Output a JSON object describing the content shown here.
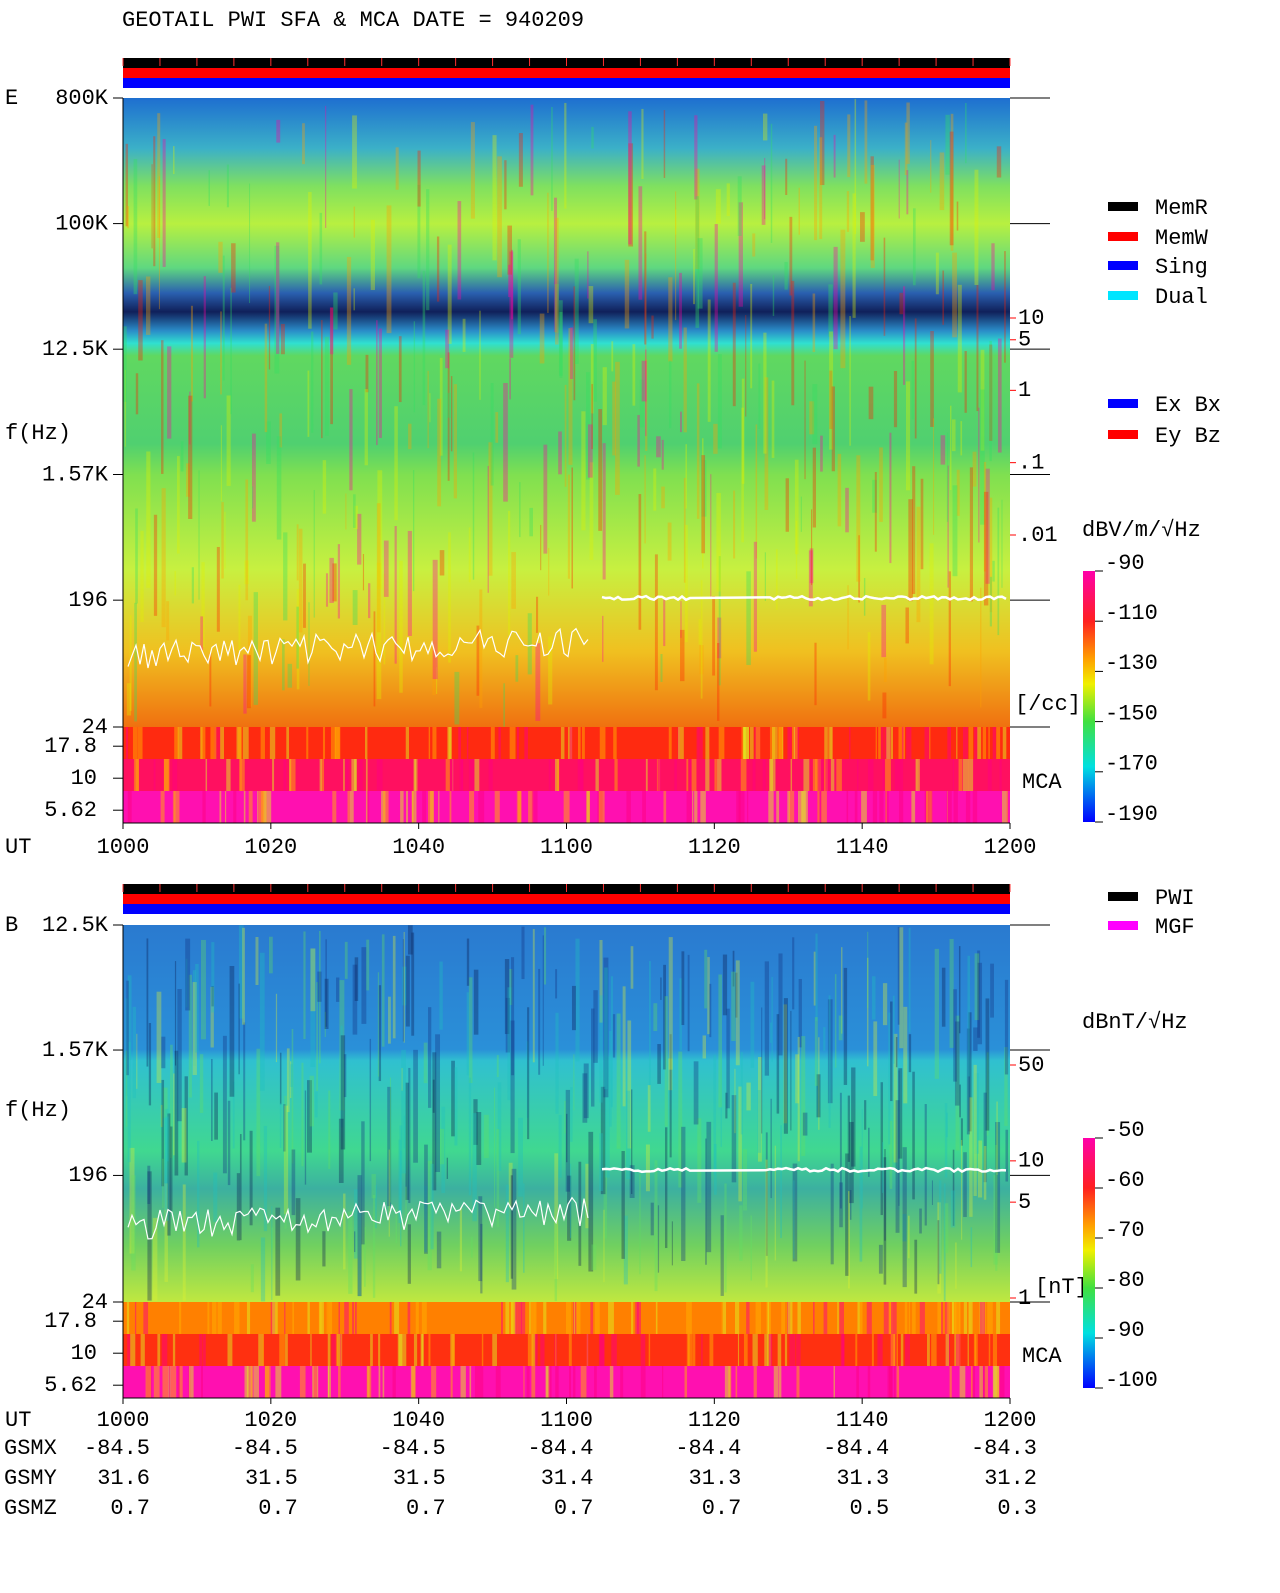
{
  "header": {
    "title": "GEOTAIL  PWI SFA & MCA   DATE = 940209"
  },
  "chart_data": [
    {
      "type": "spectrogram",
      "panel_label": "E",
      "y_label": "f(Hz)",
      "x_label": "UT",
      "x": [
        "1000",
        "1020",
        "1040",
        "1100",
        "1120",
        "1140",
        "1200"
      ],
      "log_y": true,
      "ylim": [
        24,
        800000
      ],
      "yticks": [
        {
          "value": 800000,
          "label": "800K"
        },
        {
          "value": 100000,
          "label": "100K"
        },
        {
          "value": 12500,
          "label": "12.5K"
        },
        {
          "value": 1570,
          "label": "1.57K"
        },
        196,
        24
      ],
      "mca_label": "MCA",
      "mca_ticks": [
        17.8,
        10,
        5.62
      ],
      "colorbar": {
        "label": "dBV/m/√Hz",
        "lim": [
          -190,
          -90
        ],
        "ticks": [
          -90,
          -110,
          -130,
          -150,
          -170,
          -190
        ]
      },
      "right_axis": {
        "label": "[/cc]",
        "color": "#ff0000",
        "log": true,
        "lim": [
          0.01,
          10
        ],
        "ticks": [
          10,
          5,
          1,
          {
            "value": 0.1,
            "label": ".1"
          },
          {
            "value": 0.01,
            "label": ".01"
          }
        ]
      },
      "legend": [
        {
          "name": "MemR",
          "color": "#000000"
        },
        {
          "name": "MemW",
          "color": "#ff0000"
        },
        {
          "name": "Sing",
          "color": "#0000ff"
        },
        {
          "name": "Dual",
          "color": "#00e5ff"
        }
      ],
      "legend2": [
        {
          "name": "Ex Bx",
          "color": "#0000ff"
        },
        {
          "name": "Ey Bz",
          "color": "#ff0000"
        }
      ]
    },
    {
      "type": "spectrogram",
      "panel_label": "B",
      "y_label": "f(Hz)",
      "x_label": "UT",
      "x": [
        "1000",
        "1020",
        "1040",
        "1100",
        "1120",
        "1140",
        "1200"
      ],
      "log_y": true,
      "ylim": [
        24,
        12500
      ],
      "yticks": [
        {
          "value": 12500,
          "label": "12.5K"
        },
        {
          "value": 1570,
          "label": "1.57K"
        },
        196,
        24
      ],
      "mca_label": "MCA",
      "mca_ticks": [
        17.8,
        10,
        5.62
      ],
      "colorbar": {
        "label": "dBnT/√Hz",
        "lim": [
          -100,
          -50
        ],
        "ticks": [
          -50,
          -60,
          -70,
          -80,
          -90,
          -100
        ]
      },
      "right_axis": {
        "label": "[nT]",
        "color": "#ff0000",
        "log": true,
        "lim": [
          1,
          50
        ],
        "ticks": [
          50,
          10,
          5,
          1
        ]
      },
      "legend": [
        {
          "name": "PWI",
          "color": "#000000"
        },
        {
          "name": "MGF",
          "color": "#ff00ff"
        }
      ]
    }
  ],
  "orbit": {
    "rows": [
      {
        "label": "GSMX",
        "values": [
          -84.5,
          -84.5,
          -84.5,
          -84.4,
          -84.4,
          -84.4,
          -84.3
        ]
      },
      {
        "label": "GSMY",
        "values": [
          31.6,
          31.5,
          31.5,
          31.4,
          31.3,
          31.3,
          31.2
        ]
      },
      {
        "label": "GSMZ",
        "values": [
          0.7,
          0.7,
          0.7,
          0.7,
          0.7,
          0.5,
          0.3
        ]
      }
    ]
  }
}
